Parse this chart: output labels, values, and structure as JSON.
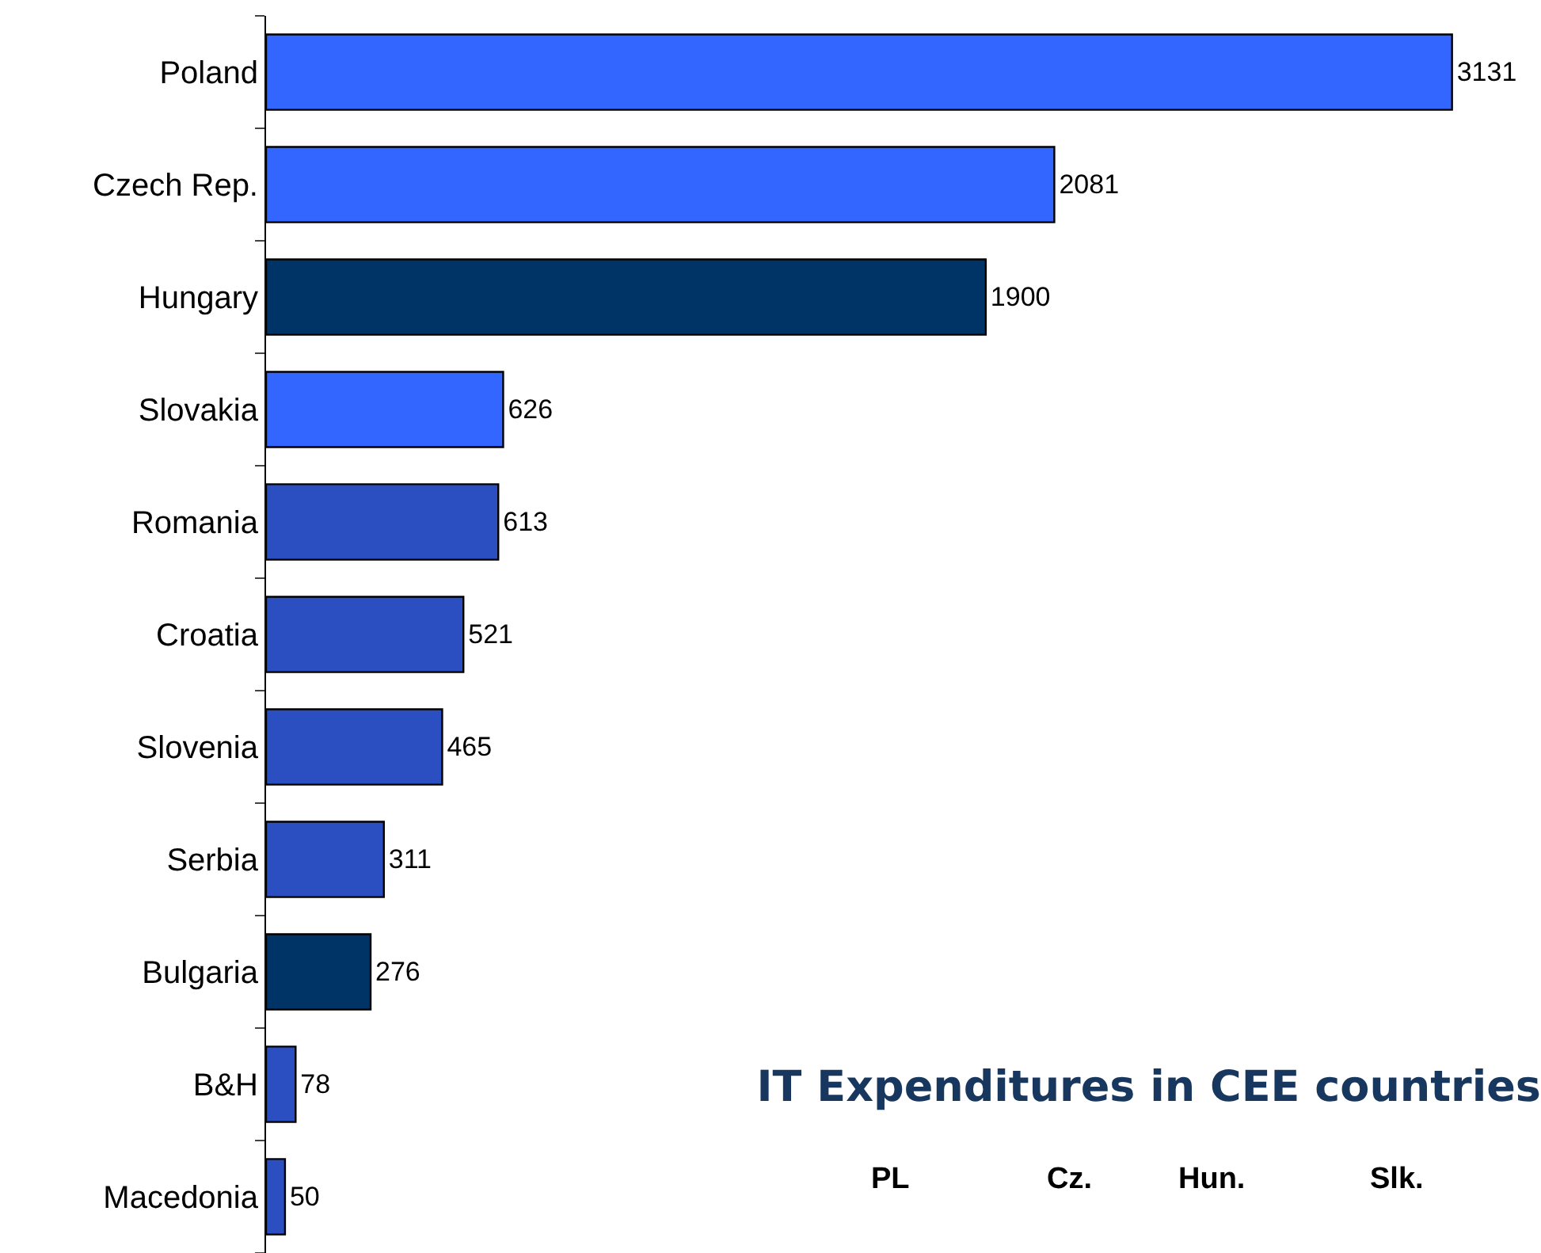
{
  "chart_data": {
    "type": "bar",
    "orientation": "horizontal",
    "title": "IT Expenditures in CEE countries",
    "categories": [
      "Poland",
      "Czech Rep.",
      "Hungary",
      "Slovakia",
      "Romania",
      "Croatia",
      "Slovenia",
      "Serbia",
      "Bulgaria",
      "B&H",
      "Macedonia"
    ],
    "values": [
      3131,
      2081,
      1900,
      626,
      613,
      521,
      465,
      311,
      276,
      78,
      50
    ],
    "colors": [
      "#3366ff",
      "#3366ff",
      "#003366",
      "#3366ff",
      "#2b4fc0",
      "#2b4fc0",
      "#2b4fc0",
      "#2b4fc0",
      "#003366",
      "#2b4fc0",
      "#2b4fc0"
    ],
    "data_labels": true,
    "legend": false,
    "annotations": [
      "PL",
      "Cz.",
      "Hun.",
      "Slk."
    ]
  }
}
